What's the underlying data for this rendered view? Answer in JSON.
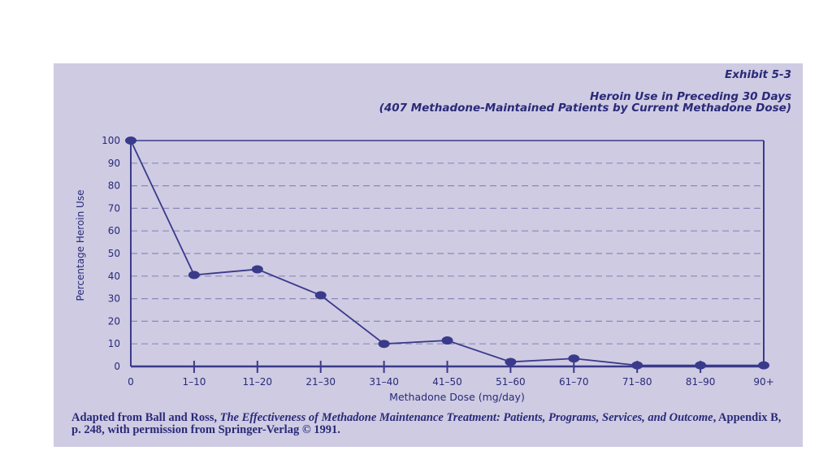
{
  "header": {
    "exhibit": "Exhibit 5-3",
    "title": "Heroin Use in Preceding 30 Days",
    "subtitle": "(407 Methadone-Maintained Patients by Current Methadone Dose)"
  },
  "caption": {
    "prefix": "Adapted from Ball and Ross, ",
    "book_title": "The Effectiveness of Methadone Maintenance Treatment: Patients, Programs, Services, and Outcome",
    "suffix": ", Appendix B, p. 248, with permission from Springer-Verlag © 1991."
  },
  "colors": {
    "panel": "#cecbe3",
    "ink": "#2a2a78",
    "line": "#3a3a8a",
    "grid": "#8b89b8"
  },
  "chart_data": {
    "type": "line",
    "title": "Heroin Use in Preceding 30 Days",
    "xlabel": "Methadone Dose (mg/day)",
    "ylabel": "Percentage Heroin Use",
    "categories": [
      "0",
      "1–10",
      "11–20",
      "21–30",
      "31–40",
      "41–50",
      "51–60",
      "61–70",
      "71–80",
      "81–90",
      "90+"
    ],
    "values": [
      100,
      40.5,
      43,
      31.5,
      10,
      11.5,
      2,
      3.5,
      0.5,
      0.5,
      0.5
    ],
    "ylim": [
      0,
      100
    ],
    "yticks": [
      0,
      10,
      20,
      30,
      40,
      50,
      60,
      70,
      80,
      90,
      100
    ],
    "grid": "horizontal dashed"
  }
}
